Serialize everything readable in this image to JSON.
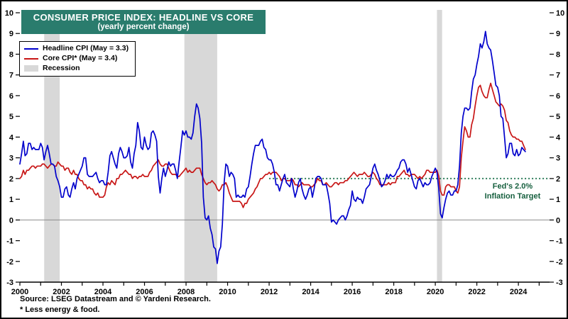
{
  "chart_data": {
    "type": "line",
    "title": "CONSUMER PRICE INDEX: HEADLINE VS CORE",
    "subtitle": "(yearly percent change)",
    "ylim": [
      -3,
      10
    ],
    "xlim": [
      2000,
      2025.5
    ],
    "y_ticks": [
      -3,
      -2,
      -1,
      0,
      1,
      2,
      3,
      4,
      5,
      6,
      7,
      8,
      9,
      10
    ],
    "x_ticks_years": [
      2000,
      2001,
      2002,
      2003,
      2004,
      2005,
      2006,
      2007,
      2008,
      2009,
      2010,
      2011,
      2012,
      2013,
      2014,
      2015,
      2016,
      2017,
      2018,
      2019,
      2020,
      2021,
      2022,
      2023,
      2024,
      2025
    ],
    "x_tick_label_step": 2,
    "start_year": 2000,
    "points_per_year": 12,
    "series": [
      {
        "name": "Headline CPI",
        "legend_label": "Headline CPI (May = 3.3)",
        "color": "#0000cc",
        "values": [
          2.7,
          3.2,
          3.8,
          3.1,
          3.2,
          3.7,
          3.7,
          3.4,
          3.5,
          3.4,
          3.4,
          3.4,
          3.7,
          3.5,
          2.9,
          3.3,
          3.6,
          3.2,
          2.7,
          2.7,
          2.6,
          2.1,
          1.9,
          1.6,
          1.1,
          1.1,
          1.5,
          1.6,
          1.2,
          1.1,
          1.5,
          1.8,
          1.5,
          2.0,
          2.2,
          2.4,
          2.6,
          3.0,
          3.0,
          2.2,
          2.1,
          2.1,
          2.1,
          2.2,
          2.3,
          2.0,
          1.8,
          1.9,
          1.9,
          1.7,
          1.7,
          2.3,
          3.1,
          3.3,
          3.0,
          2.7,
          2.5,
          3.2,
          3.5,
          3.3,
          3.0,
          3.0,
          3.1,
          3.5,
          2.8,
          2.5,
          3.2,
          3.6,
          4.7,
          4.3,
          3.5,
          3.4,
          4.0,
          3.6,
          3.4,
          3.5,
          4.2,
          4.3,
          4.1,
          3.8,
          2.1,
          1.3,
          2.0,
          2.5,
          2.1,
          2.4,
          2.8,
          2.6,
          2.7,
          2.7,
          2.4,
          2.0,
          2.8,
          3.5,
          4.3,
          4.1,
          4.3,
          4.0,
          4.0,
          3.9,
          4.2,
          5.0,
          5.6,
          5.4,
          4.9,
          3.7,
          1.1,
          0.1,
          0.0,
          0.2,
          -0.4,
          -0.7,
          -1.3,
          -1.4,
          -2.1,
          -1.5,
          -1.3,
          -0.2,
          1.8,
          2.7,
          2.6,
          2.1,
          2.3,
          2.2,
          2.0,
          1.1,
          1.2,
          1.1,
          1.1,
          1.2,
          1.1,
          1.5,
          1.6,
          2.1,
          2.7,
          3.2,
          3.6,
          3.6,
          3.6,
          3.8,
          3.9,
          3.5,
          3.4,
          3.0,
          2.9,
          2.9,
          2.7,
          2.3,
          1.7,
          1.7,
          1.4,
          1.7,
          2.0,
          2.2,
          1.8,
          1.7,
          1.6,
          2.0,
          1.5,
          1.1,
          1.4,
          1.8,
          2.0,
          1.5,
          1.2,
          1.0,
          1.2,
          1.5,
          1.6,
          1.1,
          1.5,
          2.0,
          2.1,
          2.1,
          2.0,
          1.7,
          1.7,
          1.7,
          1.3,
          0.8,
          -0.1,
          0.0,
          -0.1,
          -0.2,
          0.0,
          0.1,
          0.2,
          0.2,
          0.0,
          0.2,
          0.5,
          0.7,
          1.4,
          1.0,
          0.9,
          1.1,
          1.0,
          1.0,
          0.8,
          1.1,
          1.5,
          1.6,
          1.7,
          2.1,
          2.5,
          2.7,
          2.4,
          2.2,
          1.9,
          1.6,
          1.7,
          1.9,
          2.2,
          2.0,
          2.2,
          2.1,
          2.1,
          2.2,
          2.4,
          2.5,
          2.8,
          2.9,
          2.9,
          2.7,
          2.3,
          2.5,
          2.2,
          1.9,
          1.6,
          1.5,
          1.9,
          2.0,
          1.8,
          1.6,
          1.8,
          1.7,
          1.7,
          1.8,
          2.1,
          2.3,
          2.5,
          2.3,
          1.5,
          0.3,
          0.1,
          0.6,
          1.0,
          1.3,
          1.4,
          1.2,
          1.2,
          1.4,
          1.4,
          1.7,
          2.6,
          4.2,
          5.0,
          5.4,
          5.4,
          5.3,
          5.4,
          6.2,
          6.8,
          7.0,
          7.5,
          7.9,
          8.5,
          8.3,
          8.6,
          9.1,
          8.5,
          8.3,
          8.2,
          7.7,
          7.1,
          6.5,
          6.4,
          6.0,
          5.0,
          4.9,
          4.0,
          3.0,
          3.2,
          3.7,
          3.7,
          3.2,
          3.1,
          3.4,
          3.1,
          3.2,
          3.5,
          3.4,
          3.3
        ]
      },
      {
        "name": "Core CPI",
        "legend_label": "Core CPI* (May = 3.4)",
        "color": "#c81616",
        "values": [
          2.0,
          2.1,
          2.4,
          2.2,
          2.4,
          2.4,
          2.5,
          2.6,
          2.6,
          2.5,
          2.6,
          2.6,
          2.6,
          2.7,
          2.7,
          2.6,
          2.5,
          2.6,
          2.7,
          2.7,
          2.6,
          2.6,
          2.8,
          2.7,
          2.6,
          2.6,
          2.4,
          2.5,
          2.5,
          2.3,
          2.2,
          2.4,
          2.2,
          2.2,
          2.0,
          1.9,
          1.9,
          1.7,
          1.7,
          1.5,
          1.6,
          1.5,
          1.5,
          1.3,
          1.2,
          1.3,
          1.1,
          1.1,
          1.1,
          1.2,
          1.6,
          1.8,
          1.7,
          1.9,
          1.8,
          1.7,
          2.0,
          2.0,
          2.2,
          2.2,
          2.3,
          2.4,
          2.3,
          2.2,
          2.2,
          2.0,
          2.1,
          2.1,
          2.0,
          2.1,
          2.1,
          2.2,
          2.1,
          2.1,
          2.1,
          2.3,
          2.4,
          2.6,
          2.7,
          2.8,
          2.9,
          2.7,
          2.6,
          2.6,
          2.7,
          2.7,
          2.5,
          2.3,
          2.2,
          2.2,
          2.2,
          2.1,
          2.1,
          2.2,
          2.3,
          2.4,
          2.5,
          2.3,
          2.4,
          2.3,
          2.3,
          2.4,
          2.5,
          2.5,
          2.5,
          2.2,
          2.0,
          1.8,
          1.7,
          1.8,
          1.8,
          1.9,
          1.8,
          1.7,
          1.5,
          1.4,
          1.5,
          1.7,
          1.7,
          1.8,
          1.6,
          1.3,
          1.1,
          0.9,
          0.9,
          0.9,
          0.9,
          0.9,
          0.8,
          0.6,
          0.8,
          0.8,
          1.0,
          1.1,
          1.2,
          1.3,
          1.5,
          1.6,
          1.8,
          2.0,
          2.0,
          2.1,
          2.2,
          2.2,
          2.3,
          2.2,
          2.3,
          2.3,
          2.3,
          2.2,
          2.1,
          1.9,
          2.0,
          2.0,
          1.9,
          1.9,
          1.9,
          2.0,
          1.9,
          1.7,
          1.7,
          1.6,
          1.7,
          1.8,
          1.7,
          1.7,
          1.7,
          1.7,
          1.6,
          1.6,
          1.7,
          1.8,
          2.0,
          1.9,
          1.9,
          1.7,
          1.7,
          1.8,
          1.7,
          1.6,
          1.6,
          1.7,
          1.8,
          1.8,
          1.7,
          1.8,
          1.8,
          1.8,
          1.9,
          1.9,
          2.0,
          2.1,
          2.2,
          2.3,
          2.2,
          2.1,
          2.2,
          2.2,
          2.2,
          2.3,
          2.2,
          2.1,
          2.1,
          2.2,
          2.3,
          2.2,
          2.0,
          1.9,
          1.7,
          1.7,
          1.7,
          1.7,
          1.7,
          1.8,
          1.7,
          1.8,
          1.8,
          1.8,
          2.1,
          2.1,
          2.2,
          2.3,
          2.4,
          2.2,
          2.2,
          2.1,
          2.2,
          2.2,
          2.2,
          2.1,
          2.0,
          2.1,
          2.0,
          2.1,
          2.2,
          2.4,
          2.4,
          2.3,
          2.3,
          2.3,
          2.3,
          2.4,
          2.1,
          1.4,
          1.2,
          1.2,
          1.6,
          1.7,
          1.7,
          1.6,
          1.6,
          1.6,
          1.4,
          1.3,
          1.6,
          3.0,
          3.8,
          4.5,
          4.3,
          4.0,
          4.0,
          4.6,
          4.9,
          5.5,
          6.0,
          6.4,
          6.5,
          6.2,
          6.0,
          5.9,
          5.9,
          6.3,
          6.6,
          6.3,
          6.0,
          5.7,
          5.6,
          5.5,
          5.6,
          5.5,
          5.3,
          4.8,
          4.7,
          4.3,
          4.1,
          4.0,
          4.0,
          3.9,
          3.9,
          3.8,
          3.8,
          3.6,
          3.4
        ]
      }
    ],
    "recessions": {
      "legend_label": "Recession",
      "color": "#d8d8d8",
      "bands": [
        [
          2001.17,
          2001.92
        ],
        [
          2007.92,
          2009.5
        ],
        [
          2020.08,
          2020.33
        ]
      ]
    },
    "target_line": {
      "value": 2.0,
      "x_start": 2012,
      "color": "#2e7d5b",
      "label_color": "#17603f",
      "label_line1": "Fed's 2.0%",
      "label_line2": "Inflation Target"
    },
    "zero_line": 0,
    "legend_position": "top-left",
    "grid": false
  },
  "footer": {
    "source": "Source: LSEG Datastream and © Yardeni Research.",
    "footnote": "* Less energy & food."
  },
  "colors": {
    "title_bg": "#2a7c6d",
    "title_text": "#ffffff",
    "border": "#000000",
    "zero_line": "#8a8a8a"
  }
}
